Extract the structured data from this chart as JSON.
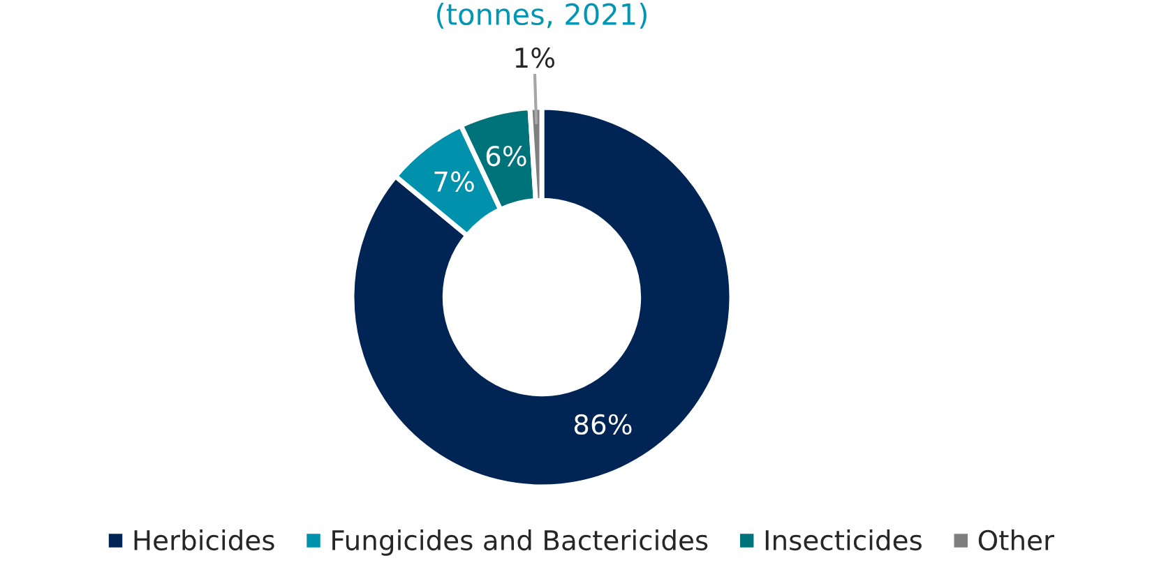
{
  "chart_data": {
    "type": "donut",
    "title": "(tonnes, 2021)",
    "categories": [
      "Herbicides",
      "Fungicides and Bactericides",
      "Insecticides",
      "Other"
    ],
    "values": [
      86,
      7,
      6,
      1
    ],
    "colors": [
      "#002555",
      "#0091ad",
      "#00737a",
      "#7f7f7f"
    ],
    "value_labels": [
      "86%",
      "7%",
      "6%",
      "1%"
    ],
    "legend": "bottom"
  }
}
